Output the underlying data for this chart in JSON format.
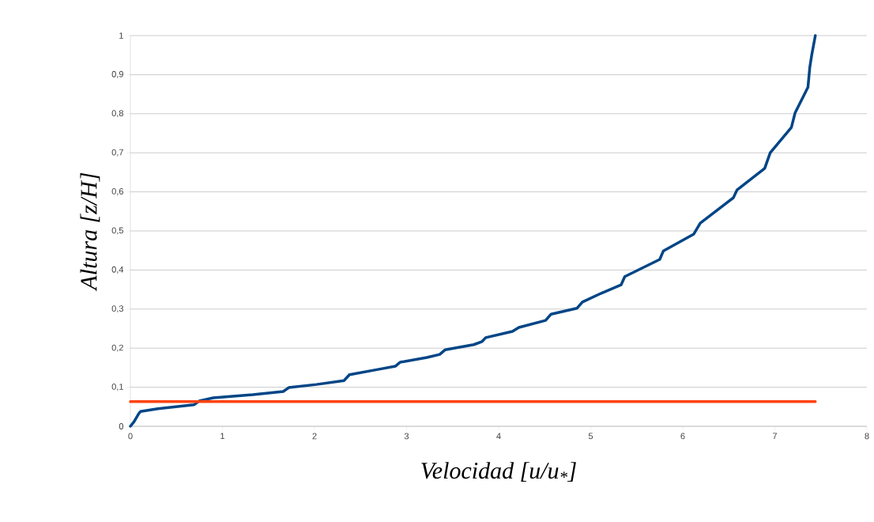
{
  "chart_data": {
    "type": "line",
    "xlabel": "Velocidad [u/u$_{*}$]",
    "ylabel": "Altura [z/H]",
    "xlim": [
      0,
      8
    ],
    "ylim": [
      0,
      1
    ],
    "xticks": [
      0,
      1,
      2,
      3,
      4,
      5,
      6,
      7,
      8
    ],
    "yticks": [
      0,
      {
        "value": 0.1,
        "label": "0,1"
      },
      {
        "value": 0.2,
        "label": "0,2"
      },
      {
        "value": 0.3,
        "label": "0,3"
      },
      {
        "value": 0.4,
        "label": "0,4"
      },
      {
        "value": 0.5,
        "label": "0,5"
      },
      {
        "value": 0.6,
        "label": "0,6"
      },
      {
        "value": 0.7,
        "label": "0,7"
      },
      {
        "value": 0.8,
        "label": "0,8"
      },
      {
        "value": 0.9,
        "label": "0,9"
      },
      1
    ],
    "grid": "y",
    "marker": "none",
    "line_style": "solid",
    "series": [
      {
        "color": "#004586",
        "x": [
          0,
          0.04,
          0.09,
          0.11,
          0.3,
          0.69,
          0.75,
          0.9,
          1.33,
          1.66,
          1.72,
          2.02,
          2.32,
          2.38,
          2.7,
          2.88,
          2.93,
          3.22,
          3.36,
          3.42,
          3.73,
          3.82,
          3.86,
          4.15,
          4.22,
          4.51,
          4.57,
          4.85,
          4.91,
          5.11,
          5.33,
          5.37,
          5.75,
          5.79,
          6.12,
          6.19,
          6.55,
          6.59,
          6.89,
          6.95,
          7.18,
          7.22,
          7.36,
          7.38,
          7.4,
          7.44
        ],
        "values": [
          0,
          0.012,
          0.032,
          0.038,
          0.045,
          0.055,
          0.065,
          0.073,
          0.081,
          0.089,
          0.099,
          0.107,
          0.117,
          0.132,
          0.146,
          0.154,
          0.164,
          0.176,
          0.184,
          0.196,
          0.209,
          0.217,
          0.227,
          0.243,
          0.253,
          0.271,
          0.287,
          0.302,
          0.318,
          0.34,
          0.362,
          0.383,
          0.427,
          0.449,
          0.492,
          0.52,
          0.585,
          0.605,
          0.66,
          0.7,
          0.765,
          0.802,
          0.868,
          0.919,
          0.949,
          1.0
        ]
      },
      {
        "color": "#ff420e",
        "x": [
          0,
          7.44
        ],
        "values": [
          0.063,
          0.063
        ]
      }
    ]
  }
}
